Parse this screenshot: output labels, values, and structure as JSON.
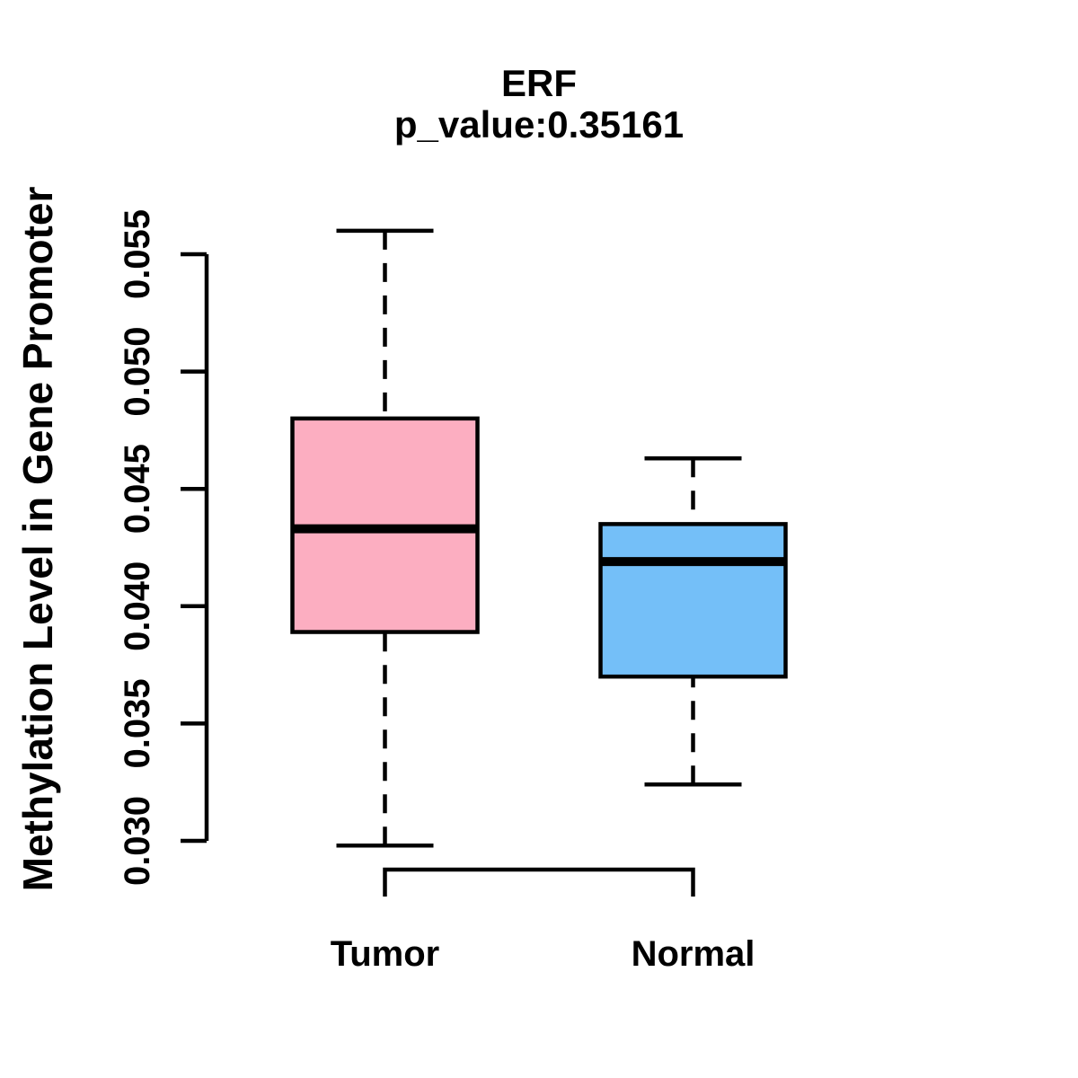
{
  "chart": {
    "title": "ERF",
    "subtitle": "p_value:0.35161",
    "ylabel": "Methylation Level in Gene Promoter"
  },
  "chart_data": {
    "type": "boxplot",
    "title": "ERF",
    "subtitle": "p_value:0.35161",
    "ylabel": "Methylation Level in Gene Promoter",
    "xlabel": "",
    "categories": [
      "Tumor",
      "Normal"
    ],
    "y_ticks": [
      0.03,
      0.035,
      0.04,
      0.045,
      0.05,
      0.055
    ],
    "y_tick_labels": [
      "0.030",
      "0.035",
      "0.040",
      "0.045",
      "0.050",
      "0.055"
    ],
    "ylim": [
      0.0295,
      0.0563
    ],
    "grid": false,
    "legend": "none",
    "series": [
      {
        "name": "Tumor",
        "fill_color": "#FCAEC1",
        "whisker_low": 0.0298,
        "q1": 0.0389,
        "median": 0.0433,
        "q3": 0.048,
        "whisker_high": 0.056
      },
      {
        "name": "Normal",
        "fill_color": "#74BFF8",
        "whisker_low": 0.0324,
        "q1": 0.037,
        "median": 0.0419,
        "q3": 0.0435,
        "whisker_high": 0.0463
      }
    ],
    "colors": {
      "stroke": "#000000",
      "background": "#FFFFFF",
      "tumor_fill": "#FCAEC1",
      "normal_fill": "#74BFF8"
    }
  }
}
